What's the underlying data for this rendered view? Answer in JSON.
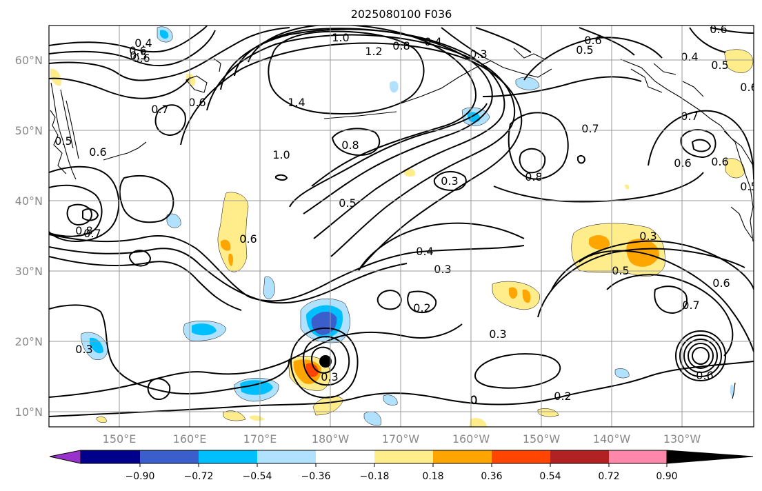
{
  "title": "2025080100 F036",
  "lat_labels": [
    "60°N",
    "50°N",
    "40°N",
    "30°N",
    "20°N",
    "10°N"
  ],
  "lon_labels": [
    "150°E",
    "160°E",
    "170°E",
    "180°W",
    "170°W",
    "160°W",
    "150°W",
    "140°W",
    "130°W"
  ],
  "colorbar": {
    "colors": [
      "#9932cc",
      "#00008b",
      "#3a5fcd",
      "#00bfff",
      "#b0e2ff",
      "#ffffff",
      "#ffec8b",
      "#ffa500",
      "#ff4500",
      "#b22222",
      "#ff88aa"
    ],
    "tick_labels": [
      "−0.90",
      "−0.72",
      "−0.54",
      "−0.36",
      "−0.18",
      "0.18",
      "0.36",
      "0.54",
      "0.72",
      "0.90"
    ]
  },
  "contour_labels": [
    "0.4",
    "0.6",
    "0.5",
    "0.6",
    "1.0",
    "1.2",
    "0.8",
    "0.4",
    "0.3",
    "0.6",
    "0.5",
    "0.6",
    "0.4",
    "0.5",
    "0.6",
    "0.6",
    "0.7",
    "1.4",
    "0.8",
    "1.0",
    "0.6",
    "0.5",
    "0.7",
    "0.3",
    "0.8",
    "0.7",
    "0.5",
    "0.6",
    "0.6",
    "0.5",
    "0.8",
    "0.7",
    "0.6",
    "0.4",
    "0.3",
    "0.3",
    "0.2",
    "0.5",
    "0.7",
    "0.6",
    "0.3",
    "0.3",
    "0.3",
    "0.2",
    "0.6"
  ],
  "marker": "storm-center"
}
